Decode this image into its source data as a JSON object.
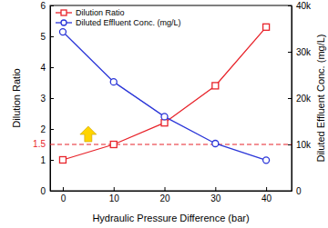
{
  "chart_data": {
    "type": "line",
    "x_label": "Hydraulic Pressure Difference (bar)",
    "y_label": "Dilution Ratio",
    "y2_label": "Diluted Effluent Conc. (mg/L)",
    "x": [
      0,
      10,
      20,
      30,
      40
    ],
    "series": [
      {
        "name": "Dilution Ratio",
        "color": "#e8232a",
        "marker": "square",
        "line_style": "solid",
        "values": [
          1.0,
          1.5,
          2.2,
          3.4,
          5.3
        ]
      },
      {
        "name": "Diluted Effluent Conc. (mg/L)",
        "color": "#2a35d8",
        "marker": "circle",
        "line_style": "solid",
        "axis": "y2",
        "values": [
          34300,
          23500,
          16000,
          10200,
          6600
        ]
      }
    ],
    "hlines": [
      {
        "value": 1.5,
        "label": "1.5",
        "color": "#e8232a",
        "line_style": "dashed"
      }
    ],
    "xlim": [
      -2.5,
      45
    ],
    "xticks": [
      0,
      10,
      20,
      30,
      40
    ],
    "ylim": [
      0,
      6
    ],
    "yticks": [
      0,
      1,
      2,
      3,
      4,
      5,
      6
    ],
    "y2lim": [
      0,
      40000
    ],
    "y2ticks": [
      0,
      {
        "value": 10000,
        "label": "10k"
      },
      {
        "value": 20000,
        "label": "20k"
      },
      {
        "value": 30000,
        "label": "30k"
      },
      {
        "value": 40000,
        "label": "40k"
      }
    ],
    "grid": false,
    "legend": "upper left"
  }
}
